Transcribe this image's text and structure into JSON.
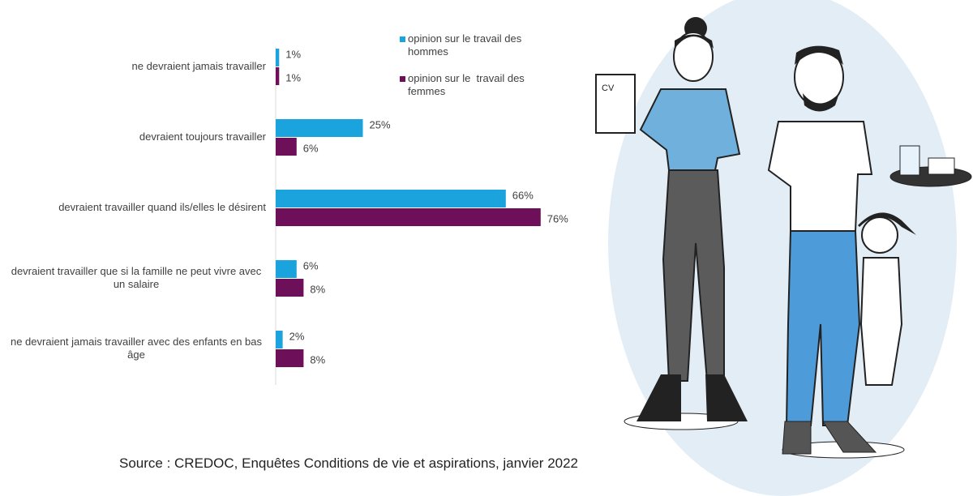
{
  "chart_data": {
    "type": "bar",
    "orientation": "horizontal",
    "categories": [
      "ne devraient jamais travailler",
      "devraient toujours travailler",
      "devraient travailler quand ils/elles le désirent",
      "devraient travailler que si la famille ne peut vivre avec un salaire",
      "ne devraient jamais travailler avec des enfants en bas âge"
    ],
    "series": [
      {
        "name": "opinion sur le travail des hommes",
        "color": "#1aa3dc",
        "values": [
          1,
          25,
          66,
          6,
          2
        ],
        "value_labels": [
          "1%",
          "25%",
          "66%",
          "6%",
          "2%"
        ]
      },
      {
        "name": "opinion sur le  travail des femmes",
        "color": "#6e0f5a",
        "values": [
          1,
          6,
          76,
          8,
          8
        ],
        "value_labels": [
          "1%",
          "6%",
          "76%",
          "8%",
          "8%"
        ]
      }
    ],
    "source": "Source : CREDOC, Enquêtes Conditions de vie et aspirations, janvier 2022"
  }
}
